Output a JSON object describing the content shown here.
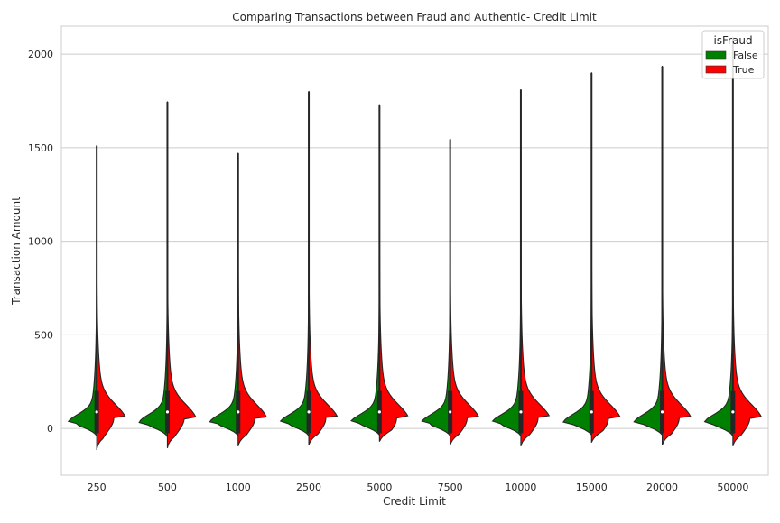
{
  "chart_data": {
    "type": "violin",
    "title": "Comparing Transactions between Fraud and Authentic- Credit Limit",
    "xlabel": "Credit Limit",
    "ylabel": "Transaction Amount",
    "categories": [
      "250",
      "500",
      "1000",
      "2500",
      "5000",
      "7500",
      "10000",
      "15000",
      "20000",
      "50000"
    ],
    "ylim": [
      -250,
      2150
    ],
    "yticks": [
      0,
      500,
      1000,
      1500,
      2000
    ],
    "grid": true,
    "split": true,
    "legend": {
      "title": "isFraud",
      "placement": "top-right",
      "entries": [
        "False",
        "True"
      ]
    },
    "series": [
      {
        "name": "False",
        "color": "#008000",
        "min": [
          -40,
          -45,
          -40,
          -40,
          -35,
          -40,
          -40,
          -35,
          -35,
          -40
        ],
        "max": [
          1510,
          1745,
          1470,
          1800,
          1730,
          1545,
          1810,
          1900,
          1935,
          2090
        ],
        "median": [
          88,
          88,
          88,
          88,
          88,
          88,
          88,
          88,
          88,
          88
        ]
      },
      {
        "name": "True",
        "color": "#ff0000",
        "min": [
          -115,
          -105,
          -95,
          -90,
          -70,
          -90,
          -95,
          -75,
          -90,
          -95
        ],
        "max": [
          1090,
          1560,
          1000,
          950,
          1680,
          1050,
          1250,
          1420,
          850,
          1290
        ],
        "median": [
          88,
          88,
          88,
          88,
          88,
          88,
          88,
          88,
          88,
          88
        ]
      }
    ]
  }
}
